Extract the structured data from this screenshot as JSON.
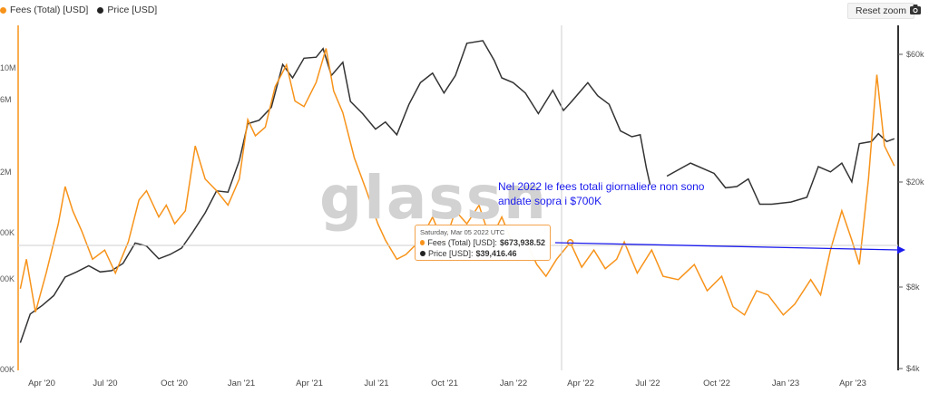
{
  "legend": {
    "fees_label": "Fees (Total) [USD]",
    "price_label": "Price [USD]"
  },
  "toolbar": {
    "reset_zoom_label": "Reset zoom",
    "camera_icon": "camera-icon"
  },
  "watermark": "glassn",
  "annotation": "Nel 2022 le fees totali giornaliere non sono andate sopra i $700K",
  "tooltip": {
    "date": "Saturday, Mar 05 2022 UTC",
    "fees_label": "Fees (Total) [USD]:",
    "fees_value": "$673,938.52",
    "price_label": "Price [USD]:",
    "price_value": "$39,416.46"
  },
  "colors": {
    "fees": "#f7931a",
    "price": "#333333",
    "annotation": "#1a1aee",
    "accent_axis": "#f7931a"
  },
  "chart_data": {
    "type": "line",
    "title": "",
    "x_ticks": [
      "Apr '20",
      "Jul '20",
      "Oct '20",
      "Jan '21",
      "Apr '21",
      "Jul '21",
      "Oct '21",
      "Jan '22",
      "Apr '22",
      "Jul '22",
      "Oct '22",
      "Jan '23",
      "Apr '23"
    ],
    "left_axis": {
      "scale": "log",
      "ticks": [
        "10M",
        "6M",
        "2M",
        "00K",
        "00K",
        "00K"
      ]
    },
    "right_axis": {
      "scale": "log",
      "ticks": [
        "$60k",
        "$20k",
        "$8k",
        "$4k"
      ]
    },
    "reference_line": {
      "label": "$700K",
      "value": 700000
    },
    "crosshair_date": "2022-03-05",
    "series": [
      {
        "name": "Fees (Total) [USD]",
        "color": "#f7931a",
        "values": [
          [
            "2020-03-12",
            330000
          ],
          [
            "2020-03-20",
            520000
          ],
          [
            "2020-04-01",
            230000
          ],
          [
            "2020-04-15",
            420000
          ],
          [
            "2020-05-01",
            900000
          ],
          [
            "2020-05-10",
            1600000
          ],
          [
            "2020-05-20",
            1100000
          ],
          [
            "2020-06-01",
            800000
          ],
          [
            "2020-06-15",
            520000
          ],
          [
            "2020-07-01",
            600000
          ],
          [
            "2020-07-15",
            420000
          ],
          [
            "2020-08-01",
            680000
          ],
          [
            "2020-08-15",
            1300000
          ],
          [
            "2020-08-25",
            1500000
          ],
          [
            "2020-09-10",
            1000000
          ],
          [
            "2020-09-20",
            1200000
          ],
          [
            "2020-10-01",
            900000
          ],
          [
            "2020-10-15",
            1100000
          ],
          [
            "2020-10-28",
            3000000
          ],
          [
            "2020-11-10",
            1800000
          ],
          [
            "2020-11-25",
            1500000
          ],
          [
            "2020-12-10",
            1200000
          ],
          [
            "2020-12-25",
            1800000
          ],
          [
            "2021-01-05",
            4500000
          ],
          [
            "2021-01-15",
            3500000
          ],
          [
            "2021-01-28",
            4000000
          ],
          [
            "2021-02-10",
            7500000
          ],
          [
            "2021-02-25",
            10500000
          ],
          [
            "2021-03-08",
            6000000
          ],
          [
            "2021-03-20",
            5500000
          ],
          [
            "2021-04-05",
            8000000
          ],
          [
            "2021-04-18",
            13500000
          ],
          [
            "2021-04-28",
            7000000
          ],
          [
            "2021-05-10",
            5000000
          ],
          [
            "2021-05-25",
            2500000
          ],
          [
            "2021-06-10",
            1500000
          ],
          [
            "2021-06-25",
            900000
          ],
          [
            "2021-07-05",
            700000
          ],
          [
            "2021-07-20",
            520000
          ],
          [
            "2021-08-01",
            560000
          ],
          [
            "2021-08-20",
            700000
          ],
          [
            "2021-09-05",
            1000000
          ],
          [
            "2021-09-20",
            650000
          ],
          [
            "2021-10-05",
            1100000
          ],
          [
            "2021-10-20",
            900000
          ],
          [
            "2021-11-05",
            1200000
          ],
          [
            "2021-11-20",
            700000
          ],
          [
            "2021-12-05",
            1000000
          ],
          [
            "2021-12-20",
            650000
          ],
          [
            "2022-01-05",
            700000
          ],
          [
            "2022-01-20",
            480000
          ],
          [
            "2022-02-01",
            400000
          ],
          [
            "2022-02-15",
            520000
          ],
          [
            "2022-03-05",
            673938
          ],
          [
            "2022-03-20",
            460000
          ],
          [
            "2022-04-05",
            600000
          ],
          [
            "2022-04-20",
            450000
          ],
          [
            "2022-05-05",
            520000
          ],
          [
            "2022-05-15",
            680000
          ],
          [
            "2022-06-01",
            420000
          ],
          [
            "2022-06-20",
            600000
          ],
          [
            "2022-07-05",
            400000
          ],
          [
            "2022-07-25",
            380000
          ],
          [
            "2022-08-15",
            480000
          ],
          [
            "2022-09-01",
            320000
          ],
          [
            "2022-09-20",
            400000
          ],
          [
            "2022-10-05",
            250000
          ],
          [
            "2022-10-20",
            220000
          ],
          [
            "2022-11-05",
            320000
          ],
          [
            "2022-11-20",
            300000
          ],
          [
            "2022-12-10",
            220000
          ],
          [
            "2022-12-25",
            260000
          ],
          [
            "2023-01-15",
            380000
          ],
          [
            "2023-01-28",
            300000
          ],
          [
            "2023-02-10",
            600000
          ],
          [
            "2023-02-25",
            1100000
          ],
          [
            "2023-03-10",
            700000
          ],
          [
            "2023-03-20",
            480000
          ],
          [
            "2023-04-01",
            1800000
          ],
          [
            "2023-04-12",
            9000000
          ],
          [
            "2023-04-22",
            3000000
          ],
          [
            "2023-05-05",
            2200000
          ]
        ]
      },
      {
        "name": "Price [USD]",
        "color": "#333333",
        "values": [
          [
            "2020-03-12",
            5000
          ],
          [
            "2020-03-25",
            6400
          ],
          [
            "2020-04-10",
            6900
          ],
          [
            "2020-04-25",
            7500
          ],
          [
            "2020-05-10",
            8800
          ],
          [
            "2020-05-25",
            9200
          ],
          [
            "2020-06-10",
            9700
          ],
          [
            "2020-06-25",
            9200
          ],
          [
            "2020-07-10",
            9300
          ],
          [
            "2020-07-25",
            9900
          ],
          [
            "2020-08-10",
            11800
          ],
          [
            "2020-08-25",
            11500
          ],
          [
            "2020-09-10",
            10300
          ],
          [
            "2020-09-25",
            10700
          ],
          [
            "2020-10-10",
            11300
          ],
          [
            "2020-10-25",
            13000
          ],
          [
            "2020-11-10",
            15300
          ],
          [
            "2020-11-25",
            18500
          ],
          [
            "2020-12-10",
            18300
          ],
          [
            "2020-12-25",
            24000
          ],
          [
            "2021-01-05",
            33000
          ],
          [
            "2021-01-20",
            34000
          ],
          [
            "2021-02-05",
            38000
          ],
          [
            "2021-02-20",
            55000
          ],
          [
            "2021-03-05",
            49000
          ],
          [
            "2021-03-20",
            58000
          ],
          [
            "2021-04-05",
            58500
          ],
          [
            "2021-04-14",
            63000
          ],
          [
            "2021-04-25",
            50000
          ],
          [
            "2021-05-10",
            56000
          ],
          [
            "2021-05-20",
            40000
          ],
          [
            "2021-06-05",
            36000
          ],
          [
            "2021-06-22",
            31500
          ],
          [
            "2021-07-05",
            33500
          ],
          [
            "2021-07-20",
            30000
          ],
          [
            "2021-08-05",
            39000
          ],
          [
            "2021-08-20",
            47000
          ],
          [
            "2021-09-05",
            51000
          ],
          [
            "2021-09-20",
            43000
          ],
          [
            "2021-10-05",
            50000
          ],
          [
            "2021-10-20",
            66000
          ],
          [
            "2021-11-10",
            67500
          ],
          [
            "2021-11-25",
            57000
          ],
          [
            "2021-12-05",
            49000
          ],
          [
            "2021-12-20",
            47000
          ],
          [
            "2022-01-05",
            43000
          ],
          [
            "2022-01-22",
            36000
          ],
          [
            "2022-02-10",
            44000
          ],
          [
            "2022-02-24",
            37000
          ],
          [
            "2022-03-05",
            39416
          ],
          [
            "2022-03-28",
            47000
          ],
          [
            "2022-04-10",
            42000
          ],
          [
            "2022-04-25",
            39000
          ],
          [
            "2022-05-10",
            31000
          ],
          [
            "2022-05-25",
            29500
          ],
          [
            "2022-06-05",
            30000
          ],
          [
            "2022-06-13",
            22500
          ],
          [
            "2022-06-18",
            19500
          ],
          [
            "2022-07-10",
            21000
          ],
          [
            "2022-08-10",
            23500
          ],
          [
            "2022-09-10",
            21500
          ],
          [
            "2022-09-25",
            19000
          ],
          [
            "2022-10-10",
            19200
          ],
          [
            "2022-10-25",
            20500
          ],
          [
            "2022-11-09",
            16500
          ],
          [
            "2022-11-25",
            16500
          ],
          [
            "2022-12-20",
            16800
          ],
          [
            "2023-01-10",
            17500
          ],
          [
            "2023-01-25",
            22800
          ],
          [
            "2023-02-10",
            21800
          ],
          [
            "2023-02-25",
            23500
          ],
          [
            "2023-03-10",
            20000
          ],
          [
            "2023-03-20",
            27800
          ],
          [
            "2023-04-05",
            28300
          ],
          [
            "2023-04-14",
            30300
          ],
          [
            "2023-04-25",
            28300
          ],
          [
            "2023-05-05",
            29000
          ]
        ]
      }
    ]
  }
}
